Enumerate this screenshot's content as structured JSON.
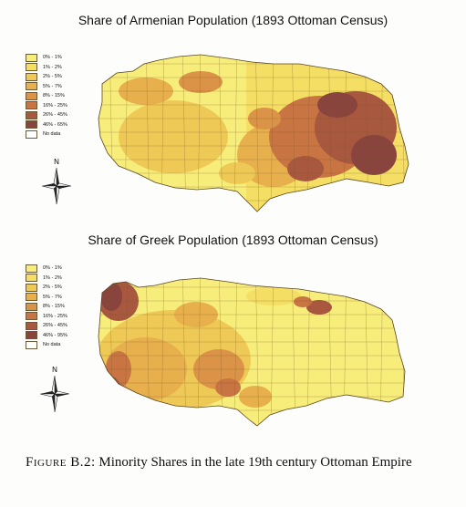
{
  "maps": [
    {
      "title": "Share of Armenian Population (1893 Ottoman Census)",
      "legend": [
        {
          "label": "0% - 1%",
          "color": "#f7ed7a"
        },
        {
          "label": "1% - 2%",
          "color": "#f4de64"
        },
        {
          "label": "2% - 5%",
          "color": "#efc955"
        },
        {
          "label": "5% - 7%",
          "color": "#e8b04d"
        },
        {
          "label": "8% - 15%",
          "color": "#db9347"
        },
        {
          "label": "16% - 25%",
          "color": "#c87543"
        },
        {
          "label": "26% - 45%",
          "color": "#a8583e"
        },
        {
          "label": "46% - 65%",
          "color": "#88443d"
        },
        {
          "label": "No data",
          "color": "#ffffff"
        }
      ],
      "compass_label": "N"
    },
    {
      "title": "Share of Greek Population (1893 Ottoman Census)",
      "legend": [
        {
          "label": "0% - 1%",
          "color": "#f7ed7a"
        },
        {
          "label": "1% - 2%",
          "color": "#f4de64"
        },
        {
          "label": "2% - 5%",
          "color": "#efc955"
        },
        {
          "label": "5% - 7%",
          "color": "#e8b04d"
        },
        {
          "label": "8% - 15%",
          "color": "#db9347"
        },
        {
          "label": "16% - 25%",
          "color": "#c87543"
        },
        {
          "label": "26% - 45%",
          "color": "#a8583e"
        },
        {
          "label": "46% - 95%",
          "color": "#88443d"
        },
        {
          "label": "No data",
          "color": "#ffffff"
        }
      ],
      "compass_label": "N"
    }
  ],
  "caption": {
    "label": "Figure B.2:",
    "text": "Minority Shares in the late 19th century Ottoman Empire"
  }
}
